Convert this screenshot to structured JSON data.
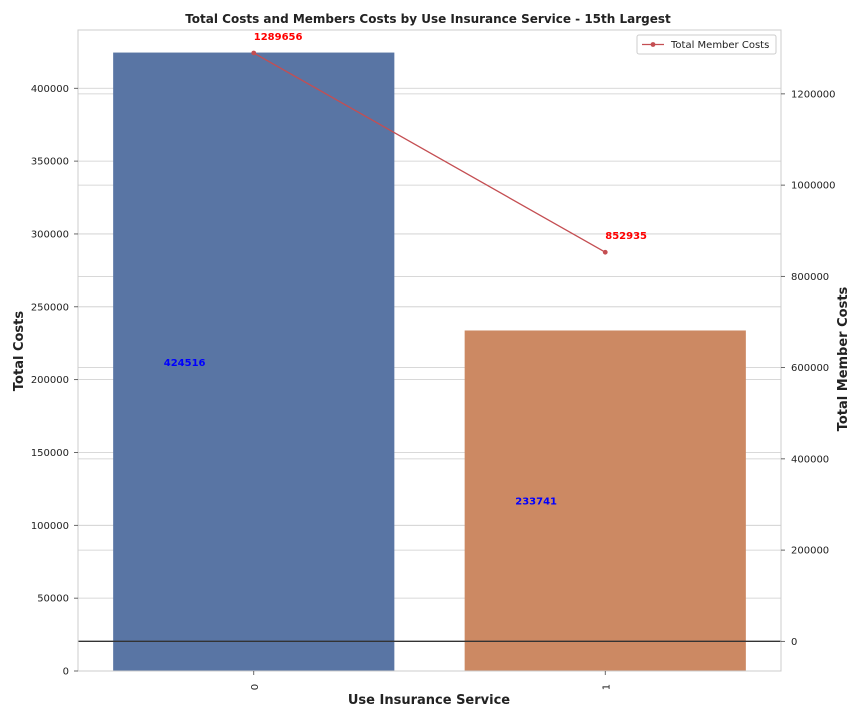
{
  "chart_data": {
    "type": "bar",
    "title": "Total Costs and Members Costs by Use Insurance Service - 15th Largest",
    "xlabel": "Use Insurance Service",
    "ylabel": "Total Costs",
    "y2label": "Total Member Costs",
    "categories": [
      "0",
      "1"
    ],
    "series": [
      {
        "type": "bar",
        "values": [
          424516,
          233741
        ],
        "colors": [
          "#5975a4",
          "#cc8963"
        ],
        "label_color": "#0000ff"
      },
      {
        "name": "Total Member Costs",
        "type": "line",
        "axis": "right",
        "values": [
          1289656,
          852935
        ],
        "color": "#c44e52",
        "label_color": "#ff0000"
      }
    ],
    "ylim": [
      0,
      440000
    ],
    "yticks": [
      0,
      50000,
      100000,
      150000,
      200000,
      250000,
      300000,
      350000,
      400000
    ],
    "ytick_labels": [
      "0",
      "50000",
      "100000",
      "150000",
      "200000",
      "250000",
      "300000",
      "350000",
      "400000"
    ],
    "y2lim": [
      -65000,
      1340000
    ],
    "y2ticks": [
      0,
      200000,
      400000,
      600000,
      800000,
      1000000,
      1200000
    ],
    "y2tick_labels": [
      "0",
      "200000",
      "400000",
      "600000",
      "800000",
      "1000000",
      "1200000"
    ],
    "grid": true,
    "legend_position": "top-right",
    "legend_entries": [
      "Total Member Costs"
    ],
    "zero_line_on_right_axis": true
  }
}
